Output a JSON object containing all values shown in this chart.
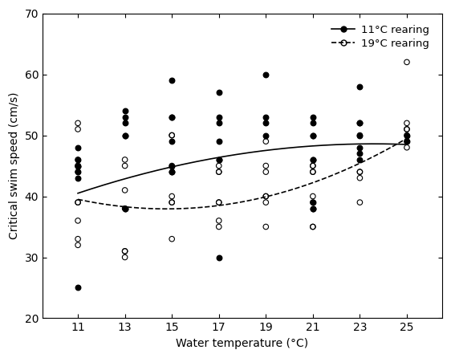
{
  "title": "",
  "xlabel": "Water temperature (°C)",
  "ylabel": "Critical swim speed (cm/s)",
  "xlim": [
    9.5,
    26.5
  ],
  "ylim": [
    20,
    70
  ],
  "xticks": [
    11,
    13,
    15,
    17,
    19,
    21,
    23,
    25
  ],
  "yticks": [
    20,
    30,
    40,
    50,
    60,
    70
  ],
  "filled_points": {
    "11": [
      25,
      43,
      44,
      45,
      45,
      46,
      48
    ],
    "13": [
      38,
      38,
      50,
      50,
      52,
      53,
      54
    ],
    "15": [
      44,
      44,
      45,
      49,
      53,
      53,
      59
    ],
    "17": [
      30,
      46,
      46,
      49,
      52,
      53,
      57
    ],
    "19": [
      50,
      52,
      53,
      60
    ],
    "21": [
      38,
      38,
      39,
      46,
      46,
      50,
      50,
      52,
      53
    ],
    "23": [
      46,
      47,
      48,
      50,
      52,
      52,
      58
    ],
    "25": [
      49,
      50
    ]
  },
  "open_points": {
    "11": [
      32,
      33,
      36,
      39,
      39,
      44,
      45,
      45,
      46,
      51,
      52
    ],
    "13": [
      30,
      31,
      31,
      38,
      41,
      45,
      46
    ],
    "15": [
      33,
      39,
      39,
      40,
      45,
      50,
      50
    ],
    "17": [
      35,
      36,
      39,
      39,
      44,
      44,
      45
    ],
    "19": [
      35,
      39,
      40,
      40,
      44,
      45,
      49
    ],
    "21": [
      35,
      35,
      39,
      40,
      44,
      44,
      45,
      45
    ],
    "23": [
      39,
      43,
      44,
      44,
      50
    ],
    "25": [
      48,
      49,
      50,
      51,
      51,
      52,
      62
    ]
  },
  "legend_labels": [
    "11°C rearing",
    "19°C rearing"
  ],
  "dot_size": 22,
  "bg_color": "white",
  "font_size": 10,
  "solid_fit_x": [
    11,
    18,
    25
  ],
  "solid_fit_y": [
    40.5,
    47.0,
    48.5
  ],
  "dashed_fit_x": [
    11,
    14,
    25
  ],
  "dashed_fit_y": [
    39.5,
    38.0,
    49.5
  ]
}
